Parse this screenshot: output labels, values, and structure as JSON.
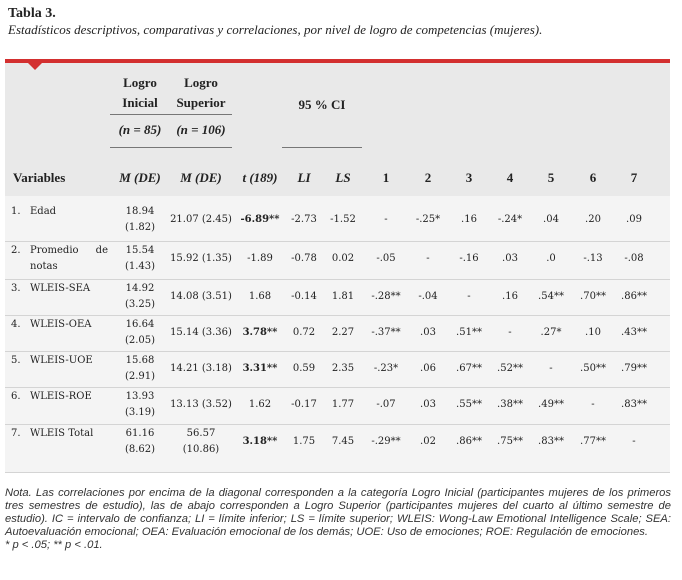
{
  "title": "Tabla 3.",
  "subtitle": "Estadísticos descriptivos, comparativas y correlaciones, por nivel de logro de competencias (mujeres).",
  "headers": {
    "group1_line1": "Logro",
    "group1_line2": "Inicial",
    "group1_n": "(n = 85)",
    "group2_line1": "Logro",
    "group2_line2": "Superior",
    "group2_n": "(n = 106)",
    "ci": "95 % CI",
    "variables": "Variables",
    "mde1": "M (DE)",
    "mde2": "M (DE)",
    "t": "t (189)",
    "li": "LI",
    "ls": "LS",
    "c1": "1",
    "c2": "2",
    "c3": "3",
    "c4": "4",
    "c5": "5",
    "c6": "6",
    "c7": "7"
  },
  "rows": [
    {
      "num": "1.",
      "var1": "Edad",
      "var2": "",
      "m1a": "18.94",
      "m1b": "(1.82)",
      "m2a": "21.07 (2.45)",
      "m2b": "",
      "t": "-6.89**",
      "li": "-2.73",
      "ls": "-1.52",
      "c": [
        "-",
        "-.25*",
        ".16",
        "-.24*",
        ".04",
        ".20",
        ".09"
      ]
    },
    {
      "num": "2.",
      "var1": "Promedio de",
      "var2": "notas",
      "m1a": "15.54",
      "m1b": "(1.43)",
      "m2a": "15.92 (1.35)",
      "m2b": "",
      "t": "-1.89",
      "li": "-0.78",
      "ls": "0.02",
      "c": [
        "-.05",
        "-",
        "-.16",
        ".03",
        ".0",
        "-.13",
        "-.08"
      ]
    },
    {
      "num": "3.",
      "var1": "WLEIS-SEA",
      "var2": "",
      "m1a": "14.92",
      "m1b": "(3.25)",
      "m2a": "14.08 (3.51)",
      "m2b": "",
      "t": "1.68",
      "li": "-0.14",
      "ls": "1.81",
      "c": [
        "-.28**",
        "-.04",
        "-",
        ".16",
        ".54**",
        ".70**",
        ".86**"
      ]
    },
    {
      "num": "4.",
      "var1": "WLEIS-OEA",
      "var2": "",
      "m1a": "16.64",
      "m1b": "(2.05)",
      "m2a": "15.14 (3.36)",
      "m2b": "",
      "t": "3.78**",
      "li": "0.72",
      "ls": "2.27",
      "c": [
        "-.37**",
        ".03",
        ".51**",
        "-",
        ".27*",
        ".10",
        ".43**"
      ]
    },
    {
      "num": "5.",
      "var1": "WLEIS-UOE",
      "var2": "",
      "m1a": "15.68",
      "m1b": "(2.91)",
      "m2a": "14.21 (3.18)",
      "m2b": "",
      "t": "3.31**",
      "li": "0.59",
      "ls": "2.35",
      "c": [
        "-.23*",
        ".06",
        ".67**",
        ".52**",
        "-",
        ".50**",
        ".79**"
      ]
    },
    {
      "num": "6.",
      "var1": "WLEIS-ROE",
      "var2": "",
      "m1a": "13.93",
      "m1b": "(3.19)",
      "m2a": "13.13 (3.52)",
      "m2b": "",
      "t": "1.62",
      "li": "-0.17",
      "ls": "1.77",
      "c": [
        "-.07",
        ".03",
        ".55**",
        ".38**",
        ".49**",
        "-",
        ".83**"
      ]
    },
    {
      "num": "7.",
      "var1": "WLEIS Total",
      "var2": "",
      "m1a": "61.16",
      "m1b": "(8.62)",
      "m2a": "56.57",
      "m2b": "(10.86)",
      "t": "3.18**",
      "li": "1.75",
      "ls": "7.45",
      "c": [
        "-.29**",
        ".02",
        ".86**",
        ".75**",
        ".83**",
        ".77**",
        "-"
      ]
    }
  ],
  "note": {
    "text": "Nota. Las correlaciones por encima de la diagonal corresponden a la categoría Logro Inicial (participantes mujeres de los primeros tres semestres de estudio), las de abajo corresponden a Logro Superior (participantes mujeres del cuarto al último semestre de estudio). IC = intervalo de confianza; LI = límite inferior; LS = límite superior; WLEIS: Wong-Law Emotional Intelligence Scale; SEA: Autoevaluación emocional; OEA: Evaluación emocional de los demás; UOE: Uso de emociones; ROE: Regulación de emociones.",
    "sig": "* p < .05; ** p < .01."
  },
  "colors": {
    "accent": "#d32f2f",
    "header_bg": "#e9e9e9",
    "body_bg": "#f4f4f4"
  }
}
